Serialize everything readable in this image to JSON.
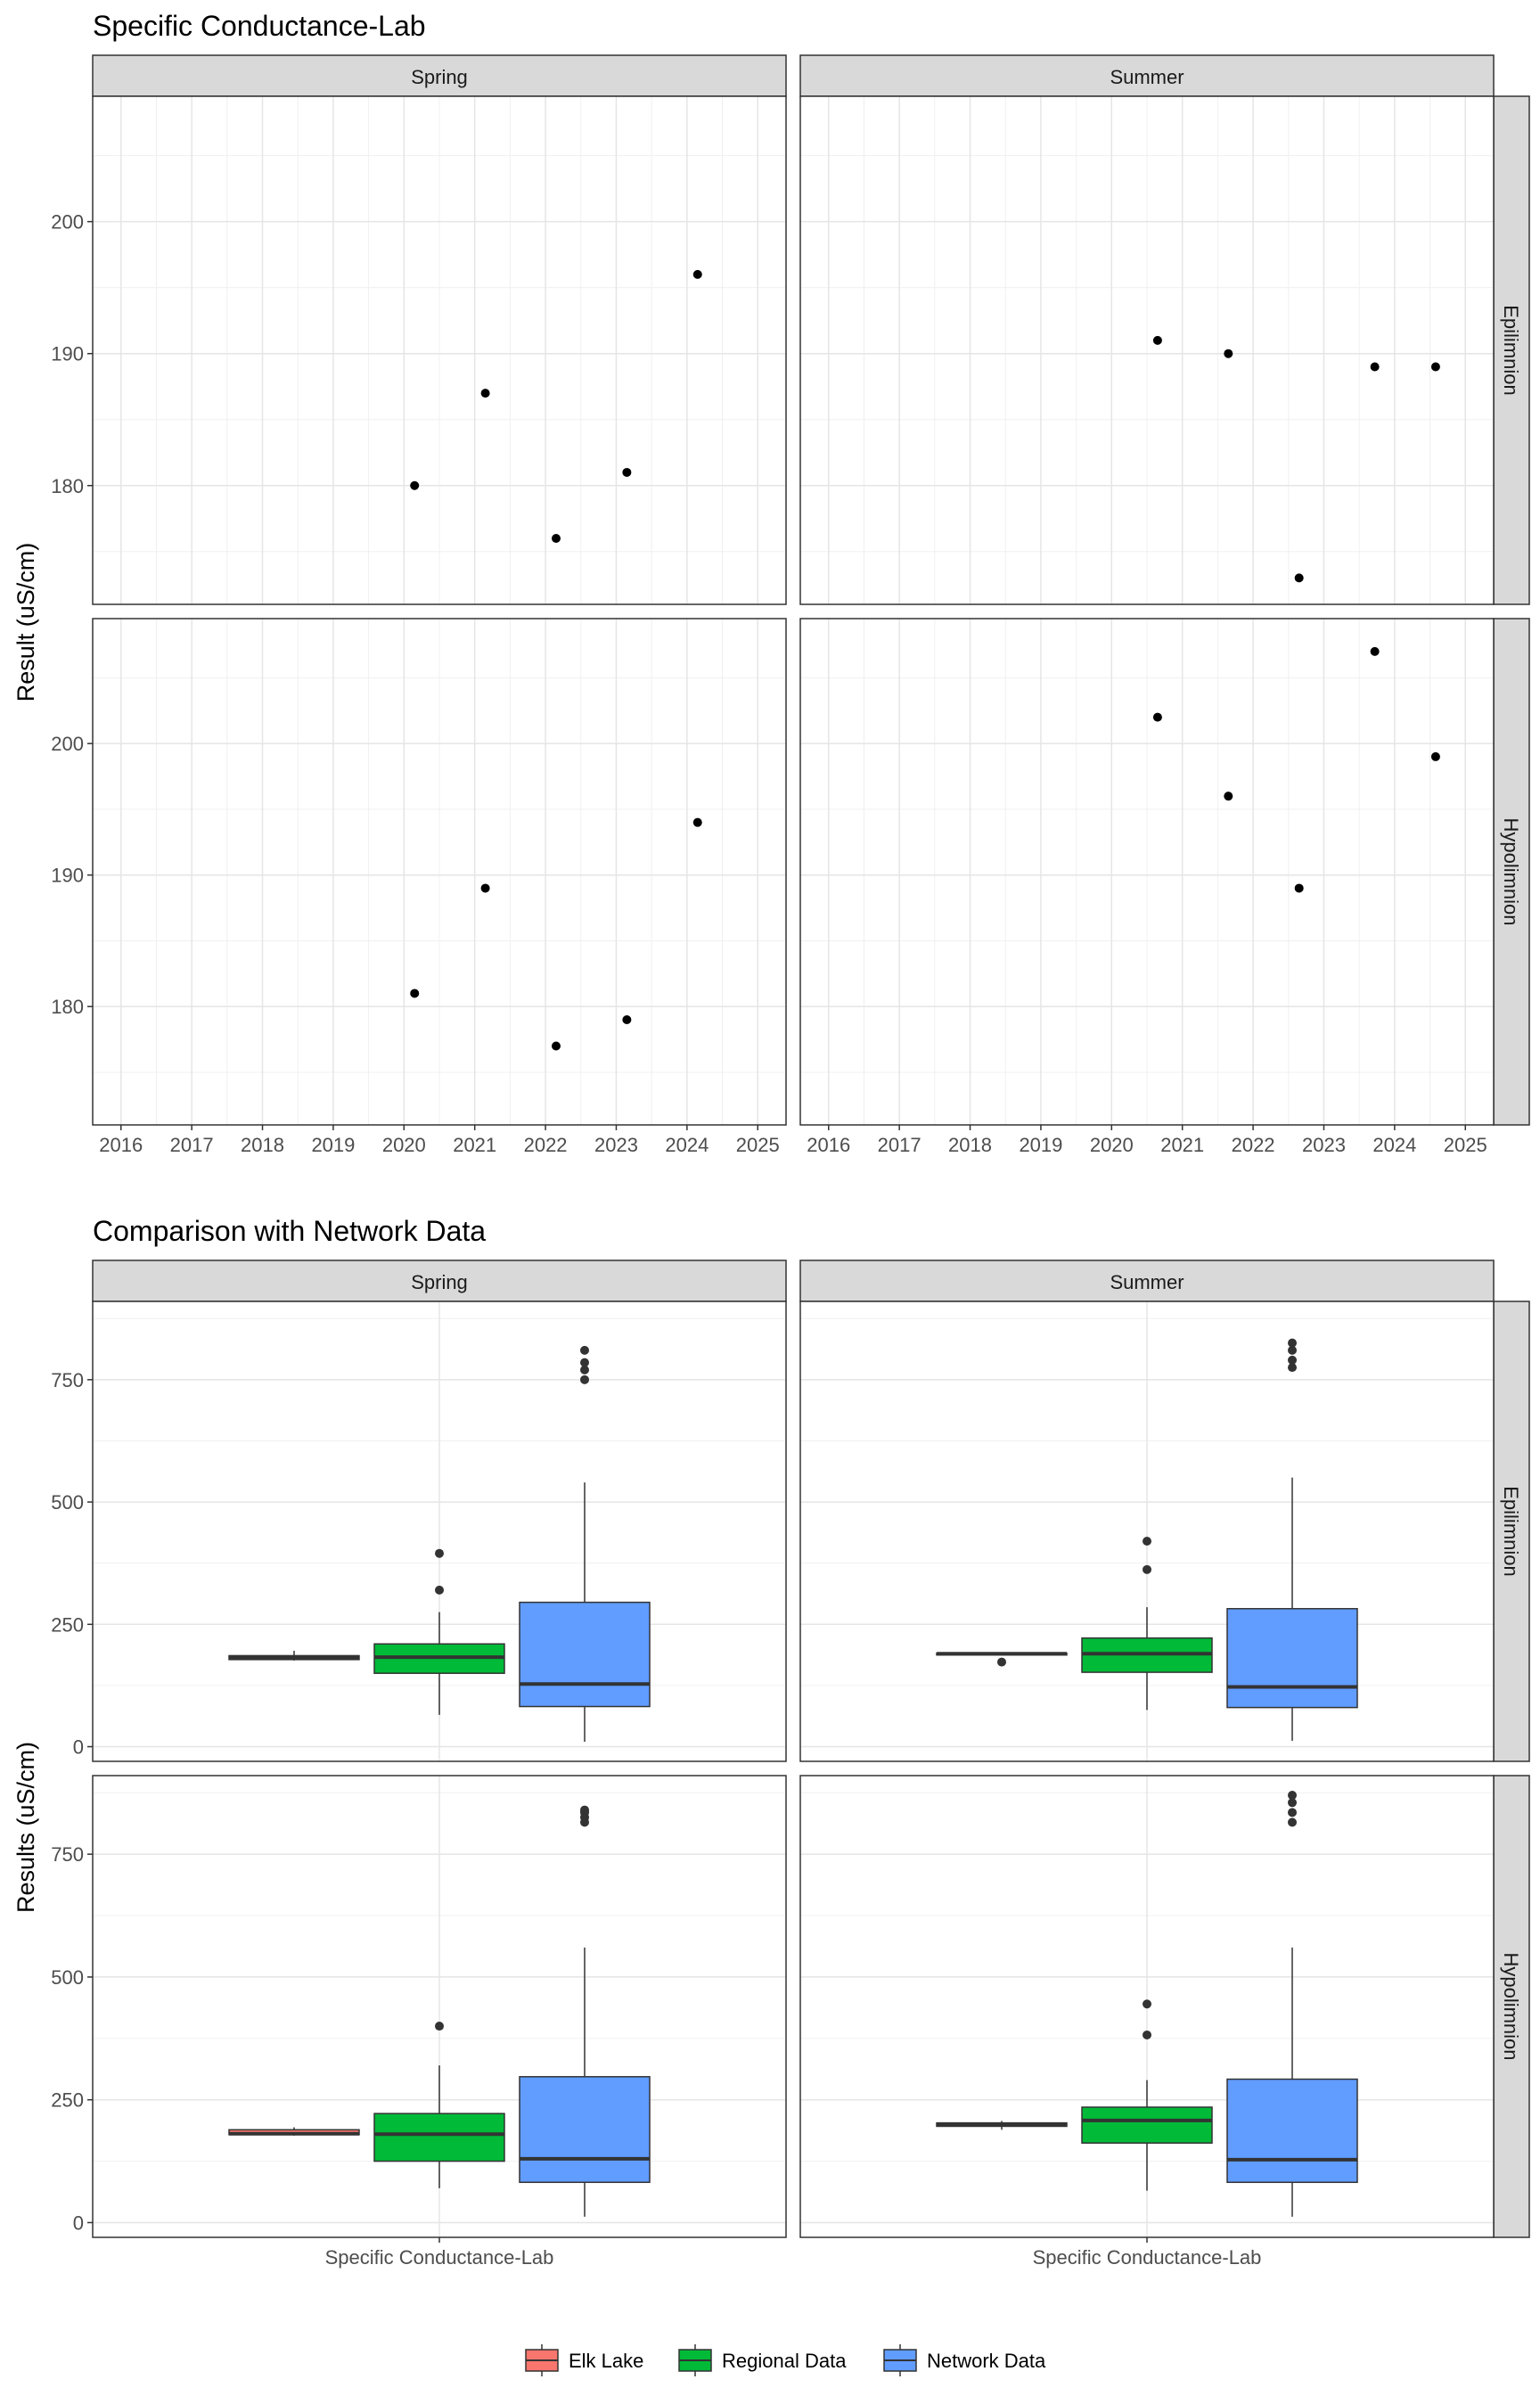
{
  "chart_data": [
    {
      "type": "scatter",
      "title": "Specific Conductance-Lab",
      "ylabel": "Result (uS/cm)",
      "xlabel": "",
      "facet_columns": [
        "Spring",
        "Summer"
      ],
      "facet_rows": [
        "Epilimnion",
        "Hypolimnion"
      ],
      "x_ticks": [
        "2016",
        "2017",
        "2018",
        "2019",
        "2020",
        "2021",
        "2022",
        "2023",
        "2024",
        "2025"
      ],
      "xlim": [
        2015.6,
        2025.4
      ],
      "y_ticks": [
        180,
        190,
        200
      ],
      "ylim": [
        171,
        209.5
      ],
      "grid": true,
      "panels": [
        {
          "season": "Spring",
          "layer": "Epilimnion",
          "points": [
            [
              2020.15,
              180
            ],
            [
              2021.15,
              187
            ],
            [
              2022.15,
              176
            ],
            [
              2023.15,
              181
            ],
            [
              2024.15,
              196
            ]
          ]
        },
        {
          "season": "Summer",
          "layer": "Epilimnion",
          "points": [
            [
              2020.65,
              191
            ],
            [
              2021.65,
              190
            ],
            [
              2022.65,
              173
            ],
            [
              2023.72,
              189
            ],
            [
              2024.58,
              189
            ]
          ]
        },
        {
          "season": "Spring",
          "layer": "Hypolimnion",
          "points": [
            [
              2020.15,
              181
            ],
            [
              2021.15,
              189
            ],
            [
              2022.15,
              177
            ],
            [
              2023.15,
              179
            ],
            [
              2024.15,
              194
            ]
          ]
        },
        {
          "season": "Summer",
          "layer": "Hypolimnion",
          "points": [
            [
              2020.65,
              202
            ],
            [
              2021.65,
              196
            ],
            [
              2022.65,
              189
            ],
            [
              2023.72,
              207
            ],
            [
              2024.58,
              199
            ]
          ]
        }
      ]
    },
    {
      "type": "box",
      "title": "Comparison with Network Data",
      "ylabel": "Results (uS/cm)",
      "category": "Specific Conductance-Lab",
      "facet_columns": [
        "Spring",
        "Summer"
      ],
      "facet_rows": [
        "Epilimnion",
        "Hypolimnion"
      ],
      "y_ticks": [
        0,
        250,
        500,
        750
      ],
      "ylim": [
        -30,
        910
      ],
      "grid": true,
      "legend": {
        "position": "bottom",
        "items": [
          {
            "name": "Elk Lake",
            "color": "#F8766D"
          },
          {
            "name": "Regional Data",
            "color": "#00BA38"
          },
          {
            "name": "Network Data",
            "color": "#619CFF"
          }
        ]
      },
      "panels": [
        {
          "season": "Spring",
          "layer": "Epilimnion",
          "boxes": [
            {
              "group": "Elk Lake",
              "whisker_low": 176,
              "q1": 178,
              "median": 182,
              "q3": 186,
              "whisker_high": 196,
              "outliers": []
            },
            {
              "group": "Regional Data",
              "whisker_low": 65,
              "q1": 150,
              "median": 183,
              "q3": 210,
              "whisker_high": 275,
              "outliers": [
                320,
                395
              ]
            },
            {
              "group": "Network Data",
              "whisker_low": 10,
              "q1": 82,
              "median": 128,
              "q3": 295,
              "whisker_high": 540,
              "outliers": [
                750,
                770,
                785,
                810
              ]
            }
          ]
        },
        {
          "season": "Summer",
          "layer": "Epilimnion",
          "boxes": [
            {
              "group": "Elk Lake",
              "whisker_low": 189,
              "q1": 189,
              "median": 190,
              "q3": 191,
              "whisker_high": 191,
              "outliers": [
                173
              ]
            },
            {
              "group": "Regional Data",
              "whisker_low": 75,
              "q1": 152,
              "median": 190,
              "q3": 222,
              "whisker_high": 285,
              "outliers": [
                362,
                420
              ]
            },
            {
              "group": "Network Data",
              "whisker_low": 12,
              "q1": 80,
              "median": 122,
              "q3": 282,
              "whisker_high": 550,
              "outliers": [
                775,
                790,
                810,
                825
              ]
            }
          ]
        },
        {
          "season": "Spring",
          "layer": "Hypolimnion",
          "boxes": [
            {
              "group": "Elk Lake",
              "whisker_low": 177,
              "q1": 179,
              "median": 181,
              "q3": 189,
              "whisker_high": 194,
              "outliers": []
            },
            {
              "group": "Regional Data",
              "whisker_low": 70,
              "q1": 125,
              "median": 180,
              "q3": 222,
              "whisker_high": 320,
              "outliers": [
                400
              ]
            },
            {
              "group": "Network Data",
              "whisker_low": 12,
              "q1": 82,
              "median": 130,
              "q3": 297,
              "whisker_high": 560,
              "outliers": [
                815,
                825,
                835,
                840
              ]
            }
          ]
        },
        {
          "season": "Summer",
          "layer": "Hypolimnion",
          "boxes": [
            {
              "group": "Elk Lake",
              "whisker_low": 189,
              "q1": 196,
              "median": 199,
              "q3": 203,
              "whisker_high": 207,
              "outliers": []
            },
            {
              "group": "Regional Data",
              "whisker_low": 65,
              "q1": 162,
              "median": 208,
              "q3": 235,
              "whisker_high": 290,
              "outliers": [
                382,
                445
              ]
            },
            {
              "group": "Network Data",
              "whisker_low": 12,
              "q1": 82,
              "median": 128,
              "q3": 292,
              "whisker_high": 560,
              "outliers": [
                815,
                835,
                855,
                870
              ]
            }
          ]
        }
      ]
    }
  ]
}
